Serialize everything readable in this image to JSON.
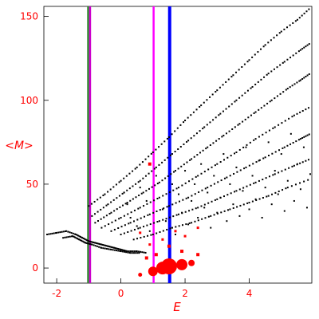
{
  "chart_data": {
    "type": "scatter",
    "xlabel": "E",
    "ylabel": "<M>",
    "xlim": [
      -2.4,
      5.95
    ],
    "ylim": [
      -9,
      156
    ],
    "xticks": [
      -2,
      0,
      2,
      4
    ],
    "yticks": [
      0,
      50,
      100,
      150
    ],
    "xtick_labels": [
      "-2",
      "0",
      "2",
      "4"
    ],
    "ytick_labels": [
      "0",
      "50",
      "100",
      "150"
    ],
    "grid": false,
    "vertical_lines": [
      {
        "x": -1.02,
        "color": "#2e8b2e"
      },
      {
        "x": -0.96,
        "color": "#cc00cc"
      },
      {
        "x": 1.02,
        "color": "#ff00ff"
      },
      {
        "x": 1.52,
        "color": "#0000ff"
      }
    ],
    "curves": [
      {
        "color": "#000000",
        "points": [
          [
            -1.0,
            37
          ],
          [
            -0.5,
            44
          ],
          [
            0,
            52
          ],
          [
            0.5,
            60
          ],
          [
            1,
            69
          ],
          [
            1.5,
            78
          ],
          [
            2,
            88
          ],
          [
            2.5,
            97
          ],
          [
            3,
            106
          ],
          [
            3.5,
            115
          ],
          [
            4,
            124
          ],
          [
            4.5,
            133
          ],
          [
            5,
            141
          ],
          [
            5.5,
            148
          ],
          [
            5.9,
            155
          ]
        ]
      },
      {
        "color": "#000000",
        "points": [
          [
            -0.9,
            31
          ],
          [
            -0.4,
            38
          ],
          [
            0.1,
            45
          ],
          [
            0.6,
            52
          ],
          [
            1.1,
            60
          ],
          [
            1.6,
            68
          ],
          [
            2.1,
            76
          ],
          [
            2.6,
            84
          ],
          [
            3.1,
            92
          ],
          [
            3.6,
            100
          ],
          [
            4.1,
            108
          ],
          [
            4.6,
            116
          ],
          [
            5.1,
            123
          ],
          [
            5.6,
            130
          ],
          [
            5.9,
            134
          ]
        ]
      },
      {
        "color": "#000000",
        "points": [
          [
            -0.8,
            27
          ],
          [
            -0.3,
            33
          ],
          [
            0.2,
            39
          ],
          [
            0.7,
            45
          ],
          [
            1.2,
            51
          ],
          [
            1.7,
            58
          ],
          [
            2.2,
            65
          ],
          [
            2.7,
            72
          ],
          [
            3.2,
            79
          ],
          [
            3.7,
            86
          ],
          [
            4.2,
            93
          ],
          [
            4.7,
            100
          ],
          [
            5.2,
            107
          ],
          [
            5.6,
            112
          ],
          [
            5.9,
            116
          ]
        ]
      },
      {
        "color": "#000000",
        "points": [
          [
            -0.6,
            24
          ],
          [
            0,
            30
          ],
          [
            0.6,
            36
          ],
          [
            1.2,
            42
          ],
          [
            1.8,
            48
          ],
          [
            2.4,
            55
          ],
          [
            3,
            62
          ],
          [
            3.6,
            69
          ],
          [
            4.2,
            77
          ],
          [
            4.8,
            84
          ],
          [
            5.4,
            91
          ],
          [
            5.9,
            96
          ]
        ]
      },
      {
        "color": "#000000",
        "points": [
          [
            -0.3,
            22
          ],
          [
            0.3,
            27
          ],
          [
            0.9,
            32
          ],
          [
            1.5,
            37
          ],
          [
            2.1,
            42
          ],
          [
            2.7,
            48
          ],
          [
            3.3,
            54
          ],
          [
            3.9,
            60
          ],
          [
            4.5,
            66
          ],
          [
            5.1,
            72
          ],
          [
            5.6,
            77
          ],
          [
            5.9,
            80
          ]
        ]
      },
      {
        "color": "#000000",
        "points": [
          [
            0,
            20
          ],
          [
            0.6,
            24
          ],
          [
            1.2,
            28
          ],
          [
            1.8,
            32
          ],
          [
            2.4,
            36
          ],
          [
            3,
            41
          ],
          [
            3.6,
            46
          ],
          [
            4.2,
            51
          ],
          [
            4.8,
            56
          ],
          [
            5.4,
            61
          ],
          [
            5.9,
            65
          ]
        ]
      },
      {
        "color": "#000000",
        "points": [
          [
            0.4,
            17
          ],
          [
            1,
            20
          ],
          [
            1.6,
            24
          ],
          [
            2.2,
            27
          ],
          [
            2.8,
            31
          ],
          [
            3.4,
            35
          ],
          [
            4,
            39
          ],
          [
            4.6,
            43
          ],
          [
            5.2,
            48
          ],
          [
            5.9,
            53
          ]
        ]
      },
      {
        "color": "#000000",
        "points": [
          [
            -2.3,
            20
          ],
          [
            -2.0,
            21
          ],
          [
            -1.7,
            22
          ],
          [
            -1.4,
            20
          ],
          [
            -1.2,
            18
          ],
          [
            -1.0,
            16
          ],
          [
            -0.8,
            15
          ],
          [
            -0.6,
            14
          ],
          [
            -0.4,
            13
          ],
          [
            -0.2,
            12
          ],
          [
            0,
            11
          ],
          [
            0.2,
            10
          ],
          [
            0.5,
            10
          ],
          [
            0.8,
            9
          ]
        ]
      },
      {
        "color": "#000000",
        "points": [
          [
            -1.8,
            18
          ],
          [
            -1.5,
            19
          ],
          [
            -1.3,
            17
          ],
          [
            -1.1,
            15
          ],
          [
            -0.9,
            14
          ],
          [
            -0.6,
            12
          ],
          [
            -0.3,
            11
          ],
          [
            0,
            10
          ],
          [
            0.3,
            9
          ],
          [
            0.6,
            9
          ]
        ]
      }
    ],
    "scatter_black": [
      [
        0.1,
        45
      ],
      [
        0.2,
        38
      ],
      [
        0.3,
        30
      ],
      [
        0.5,
        25
      ],
      [
        0.6,
        48
      ],
      [
        0.8,
        40
      ],
      [
        0.9,
        22
      ],
      [
        1.1,
        55
      ],
      [
        1.3,
        35
      ],
      [
        1.4,
        28
      ],
      [
        1.6,
        50
      ],
      [
        1.7,
        20
      ],
      [
        1.8,
        44
      ],
      [
        1.9,
        33
      ],
      [
        2.0,
        58
      ],
      [
        2.1,
        26
      ],
      [
        2.2,
        40
      ],
      [
        2.3,
        50
      ],
      [
        2.4,
        30
      ],
      [
        2.5,
        62
      ],
      [
        2.6,
        36
      ],
      [
        2.7,
        45
      ],
      [
        2.8,
        24
      ],
      [
        2.9,
        55
      ],
      [
        3.0,
        33
      ],
      [
        3.1,
        42
      ],
      [
        3.2,
        68
      ],
      [
        3.3,
        28
      ],
      [
        3.4,
        50
      ],
      [
        3.5,
        38
      ],
      [
        3.6,
        60
      ],
      [
        3.7,
        31
      ],
      [
        3.8,
        46
      ],
      [
        3.9,
        72
      ],
      [
        4.0,
        35
      ],
      [
        4.1,
        55
      ],
      [
        4.2,
        41
      ],
      [
        4.3,
        64
      ],
      [
        4.4,
        30
      ],
      [
        4.5,
        48
      ],
      [
        4.6,
        75
      ],
      [
        4.7,
        38
      ],
      [
        4.8,
        58
      ],
      [
        4.9,
        44
      ],
      [
        5.0,
        68
      ],
      [
        5.1,
        34
      ],
      [
        5.2,
        52
      ],
      [
        5.3,
        80
      ],
      [
        5.4,
        40
      ],
      [
        5.5,
        62
      ],
      [
        5.6,
        47
      ],
      [
        5.7,
        72
      ],
      [
        5.8,
        36
      ],
      [
        5.9,
        56
      ]
    ],
    "scatter_red": [
      {
        "x": 0.6,
        "y": 21,
        "size": 1.5
      },
      {
        "x": 0.9,
        "y": 14,
        "size": 1.5
      },
      {
        "x": 1.1,
        "y": 8,
        "size": 2
      },
      {
        "x": 0.8,
        "y": 6,
        "size": 2
      },
      {
        "x": 1.3,
        "y": 17,
        "size": 1.5
      },
      {
        "x": 1.7,
        "y": 22,
        "size": 1.5
      },
      {
        "x": 2.0,
        "y": 19,
        "size": 1.5
      },
      {
        "x": 2.4,
        "y": 24,
        "size": 1.5
      },
      {
        "x": 1.5,
        "y": 13,
        "size": 2
      },
      {
        "x": 1.9,
        "y": 10,
        "size": 2
      },
      {
        "x": 0.6,
        "y": -4,
        "size": 2.5
      },
      {
        "x": 1.0,
        "y": -2,
        "size": 6
      },
      {
        "x": 1.3,
        "y": 0,
        "size": 8
      },
      {
        "x": 1.5,
        "y": 1,
        "size": 10
      },
      {
        "x": 1.9,
        "y": 2,
        "size": 7
      },
      {
        "x": 2.2,
        "y": 3,
        "size": 4
      },
      {
        "x": 0.9,
        "y": 62,
        "size": 2
      },
      {
        "x": 2.4,
        "y": 8,
        "size": 2
      }
    ]
  }
}
